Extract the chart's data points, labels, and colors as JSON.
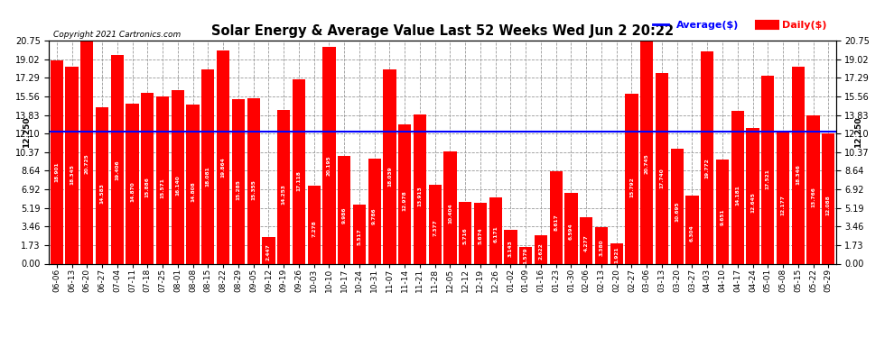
{
  "title": "Solar Energy & Average Value Last 52 Weeks Wed Jun 2 20:22",
  "copyright": "Copyright 2021 Cartronics.com",
  "legend_average": "Average($)",
  "legend_daily": "Daily($)",
  "average_line": 12.25,
  "average_label": "12.250",
  "bar_color": "#ff0000",
  "average_line_color": "#0000ff",
  "background_color": "#ffffff",
  "grid_color": "#999999",
  "categories": [
    "06-06",
    "06-13",
    "06-20",
    "06-27",
    "07-04",
    "07-11",
    "07-18",
    "07-25",
    "08-01",
    "08-08",
    "08-15",
    "08-22",
    "08-29",
    "09-05",
    "09-12",
    "09-19",
    "09-26",
    "10-03",
    "10-10",
    "10-17",
    "10-24",
    "10-31",
    "11-07",
    "11-14",
    "11-21",
    "11-28",
    "12-05",
    "12-12",
    "12-19",
    "12-26",
    "01-02",
    "01-09",
    "01-16",
    "01-23",
    "01-30",
    "02-06",
    "02-13",
    "02-20",
    "02-27",
    "03-06",
    "03-13",
    "03-20",
    "03-27",
    "04-03",
    "04-10",
    "04-17",
    "04-24",
    "05-01",
    "05-08",
    "05-15",
    "05-22",
    "05-29"
  ],
  "values": [
    18.901,
    18.345,
    20.725,
    14.583,
    19.406,
    14.87,
    15.886,
    15.571,
    16.14,
    14.808,
    18.081,
    19.864,
    15.285,
    15.355,
    2.447,
    14.253,
    17.118,
    7.278,
    20.195,
    9.986,
    5.517,
    9.786,
    18.039,
    12.978,
    13.913,
    7.377,
    10.404,
    5.716,
    5.674,
    6.171,
    3.143,
    1.579,
    2.622,
    8.617,
    6.594,
    4.277,
    3.38,
    1.921,
    15.792,
    20.745,
    17.74,
    10.695,
    6.304,
    19.772,
    9.651,
    14.181,
    12.645,
    17.521,
    12.177,
    18.346,
    13.766,
    12.088
  ],
  "ylim": [
    0,
    20.75
  ],
  "yticks": [
    0.0,
    1.73,
    3.46,
    5.19,
    6.92,
    8.64,
    10.37,
    12.1,
    13.83,
    15.56,
    17.29,
    19.02,
    20.75
  ],
  "figsize": [
    9.9,
    3.75
  ],
  "dpi": 100
}
